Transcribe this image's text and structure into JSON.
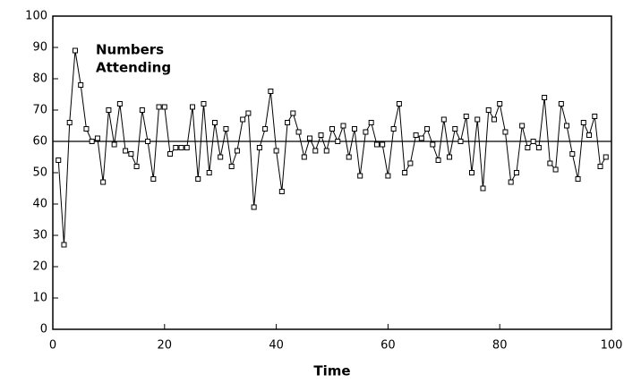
{
  "chart_data": {
    "type": "line",
    "annotation": [
      "Numbers",
      "Attending"
    ],
    "x_label": "Time",
    "x": [
      1,
      2,
      3,
      4,
      5,
      6,
      7,
      8,
      9,
      10,
      11,
      12,
      13,
      14,
      15,
      16,
      17,
      18,
      19,
      20,
      21,
      22,
      23,
      24,
      25,
      26,
      27,
      28,
      29,
      30,
      31,
      32,
      33,
      34,
      35,
      36,
      37,
      38,
      39,
      40,
      41,
      42,
      43,
      44,
      45,
      46,
      47,
      48,
      49,
      50,
      51,
      52,
      53,
      54,
      55,
      56,
      57,
      58,
      59,
      60,
      61,
      62,
      63,
      64,
      65,
      66,
      67,
      68,
      69,
      70,
      71,
      72,
      73,
      74,
      75,
      76,
      77,
      78,
      79,
      80,
      81,
      82,
      83,
      84,
      85,
      86,
      87,
      88,
      89,
      90,
      91,
      92,
      93,
      94,
      95,
      96,
      97,
      98,
      99
    ],
    "series": [
      {
        "name": "Numbers Attending",
        "color": "#000000",
        "values": [
          54,
          27,
          66,
          89,
          78,
          64,
          60,
          61,
          47,
          70,
          59,
          72,
          57,
          56,
          52,
          70,
          60,
          48,
          71,
          71,
          56,
          58,
          58,
          58,
          71,
          48,
          72,
          50,
          66,
          55,
          64,
          52,
          57,
          67,
          69,
          39,
          58,
          64,
          76,
          57,
          44,
          66,
          69,
          63,
          55,
          61,
          57,
          62,
          57,
          64,
          60,
          65,
          55,
          64,
          49,
          63,
          66,
          59,
          59,
          49,
          64,
          72,
          50,
          53,
          62,
          61,
          64,
          59,
          54,
          67,
          55,
          64,
          60,
          68,
          50,
          67,
          45,
          70,
          67,
          72,
          63,
          47,
          50,
          65,
          58,
          60,
          58,
          74,
          53,
          51,
          72,
          65,
          56,
          48,
          66,
          62,
          68,
          52,
          55
        ]
      }
    ],
    "reference_line": 60,
    "xlim": [
      0,
      100
    ],
    "xticks": [
      0,
      20,
      40,
      60,
      80,
      100
    ],
    "ylim": [
      0,
      100
    ],
    "yticks": [
      0,
      10,
      20,
      30,
      40,
      50,
      60,
      70,
      80,
      90,
      100
    ]
  }
}
